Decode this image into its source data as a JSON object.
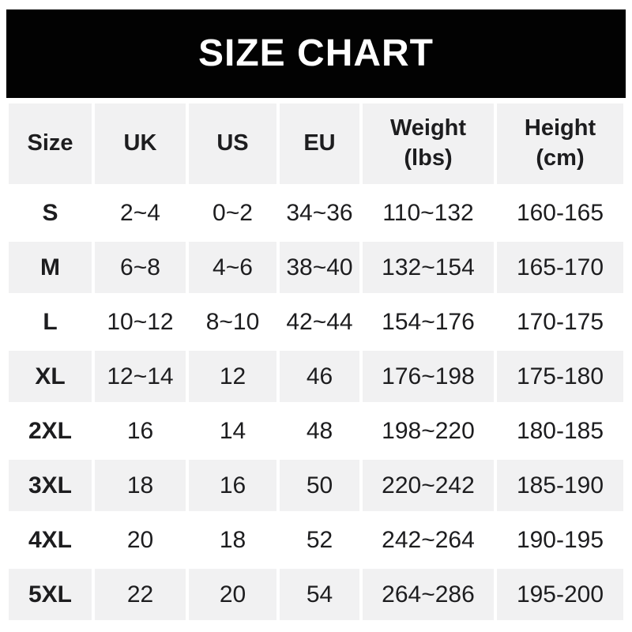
{
  "title": "SIZE CHART",
  "colors": {
    "banner_bg": "#020202",
    "banner_text": "#ffffff",
    "row_alt_bg": "#f1f1f2",
    "row_bg": "#ffffff",
    "text": "#1d1d1f",
    "page_bg": "#ffffff"
  },
  "header_display": [
    "Size",
    "UK",
    "US",
    "EU",
    "Weight\n(lbs)",
    "Height\n(cm)"
  ],
  "chart_data": {
    "type": "table",
    "title": "SIZE CHART",
    "columns": [
      "Size",
      "UK",
      "US",
      "EU",
      "Weight (lbs)",
      "Height (cm)"
    ],
    "rows": [
      [
        "S",
        "2~4",
        "0~2",
        "34~36",
        "110~132",
        "160-165"
      ],
      [
        "M",
        "6~8",
        "4~6",
        "38~40",
        "132~154",
        "165-170"
      ],
      [
        "L",
        "10~12",
        "8~10",
        "42~44",
        "154~176",
        "170-175"
      ],
      [
        "XL",
        "12~14",
        "12",
        "46",
        "176~198",
        "175-180"
      ],
      [
        "2XL",
        "16",
        "14",
        "48",
        "198~220",
        "180-185"
      ],
      [
        "3XL",
        "18",
        "16",
        "50",
        "220~242",
        "185-190"
      ],
      [
        "4XL",
        "20",
        "18",
        "52",
        "242~264",
        "190-195"
      ],
      [
        "5XL",
        "22",
        "20",
        "54",
        "264~286",
        "195-200"
      ]
    ],
    "layout": {
      "banner": "black bar, white bold centered title",
      "row_striping": "even data rows light gray, odd white, 4px white gutters between cells",
      "grid": "off"
    }
  }
}
